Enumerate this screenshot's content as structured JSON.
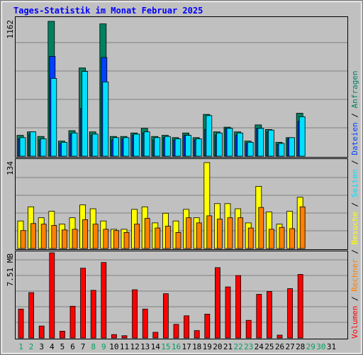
{
  "chart_data": [
    {
      "type": "bar",
      "title": "Tages-Statistik im Monat Februar 2025",
      "panel": "Anfragen / Dateien / Seiten",
      "ytick": "1162",
      "ylim": [
        0,
        1162
      ],
      "categories": [
        "1",
        "2",
        "3",
        "4",
        "5",
        "6",
        "7",
        "8",
        "9",
        "10",
        "11",
        "12",
        "13",
        "14",
        "15",
        "16",
        "17",
        "18",
        "19",
        "20",
        "21",
        "22",
        "23",
        "24",
        "25",
        "26",
        "27",
        "28",
        "29",
        "30",
        "31"
      ],
      "weekend_days": [
        "1",
        "2",
        "8",
        "9",
        "15",
        "16",
        "22",
        "23",
        "29",
        "30"
      ],
      "series": [
        {
          "name": "Anfragen",
          "color": "#008060",
          "values": [
            180,
            210,
            170,
            1162,
            130,
            220,
            760,
            210,
            1140,
            170,
            170,
            200,
            240,
            170,
            180,
            160,
            200,
            160,
            360,
            210,
            250,
            210,
            130,
            270,
            230,
            120,
            160,
            370,
            0,
            0,
            0
          ]
        },
        {
          "name": "Dateien",
          "color": "#0040ff",
          "values": [
            150,
            190,
            140,
            860,
            110,
            190,
            410,
            180,
            850,
            140,
            150,
            180,
            200,
            140,
            160,
            140,
            180,
            140,
            230,
            180,
            240,
            180,
            110,
            240,
            210,
            100,
            150,
            300,
            0,
            0,
            0
          ]
        },
        {
          "name": "Seiten",
          "color": "#00e0ff",
          "values": [
            160,
            210,
            150,
            670,
            120,
            200,
            730,
            190,
            640,
            160,
            160,
            190,
            210,
            160,
            170,
            150,
            180,
            150,
            350,
            200,
            240,
            200,
            120,
            240,
            225,
            110,
            160,
            340,
            0,
            0,
            0
          ]
        }
      ]
    },
    {
      "type": "bar",
      "panel": "Besuche / Rechner",
      "ytick": "134",
      "ylim": [
        0,
        134
      ],
      "categories": [
        "1",
        "2",
        "3",
        "4",
        "5",
        "6",
        "7",
        "8",
        "9",
        "10",
        "11",
        "12",
        "13",
        "14",
        "15",
        "16",
        "17",
        "18",
        "19",
        "20",
        "21",
        "22",
        "23",
        "24",
        "25",
        "26",
        "27",
        "28",
        "29",
        "30",
        "31"
      ],
      "series": [
        {
          "name": "Besuche",
          "color": "#ffff00",
          "values": [
            43,
            65,
            48,
            58,
            38,
            48,
            68,
            62,
            43,
            30,
            30,
            61,
            65,
            40,
            55,
            43,
            61,
            48,
            134,
            70,
            70,
            62,
            40,
            97,
            57,
            38,
            58,
            80,
            0,
            0,
            0
          ]
        },
        {
          "name": "Rechner",
          "color": "#ff8000",
          "values": [
            28,
            39,
            38,
            36,
            29,
            30,
            45,
            38,
            30,
            28,
            25,
            38,
            47,
            32,
            35,
            25,
            48,
            40,
            51,
            46,
            48,
            48,
            32,
            64,
            30,
            33,
            31,
            65,
            0,
            0,
            0
          ]
        }
      ]
    },
    {
      "type": "bar",
      "panel": "Volumen",
      "ytick": "7.51 MB",
      "ylim": [
        0,
        7.51
      ],
      "categories": [
        "1",
        "2",
        "3",
        "4",
        "5",
        "6",
        "7",
        "8",
        "9",
        "10",
        "11",
        "12",
        "13",
        "14",
        "15",
        "16",
        "17",
        "18",
        "19",
        "20",
        "21",
        "22",
        "23",
        "24",
        "25",
        "26",
        "27",
        "28",
        "29",
        "30",
        "31"
      ],
      "series": [
        {
          "name": "Volumen",
          "color": "#ff0000",
          "values": [
            2.55,
            4.0,
            1.05,
            7.51,
            0.6,
            2.8,
            6.15,
            4.2,
            6.65,
            0.3,
            0.2,
            4.25,
            2.55,
            0.5,
            3.9,
            1.2,
            1.95,
            0.65,
            2.1,
            6.2,
            4.5,
            5.5,
            1.55,
            3.85,
            4.1,
            0.25,
            4.35,
            5.6,
            0,
            0,
            0
          ]
        }
      ]
    }
  ],
  "legend": [
    {
      "label": "Volumen",
      "color": "#ff0000"
    },
    {
      "label": "Rechner",
      "color": "#ff8000"
    },
    {
      "label": "Besuche",
      "color": "#ffff00"
    },
    {
      "label": "Seiten",
      "color": "#00e0ff"
    },
    {
      "label": "Dateien",
      "color": "#0040ff"
    },
    {
      "label": "Anfragen",
      "color": "#008060"
    }
  ],
  "colors": {
    "background": "#c0c0c0",
    "title": "#0000ff",
    "weekday_label": "#000000",
    "weekend_label": "#00a060"
  }
}
